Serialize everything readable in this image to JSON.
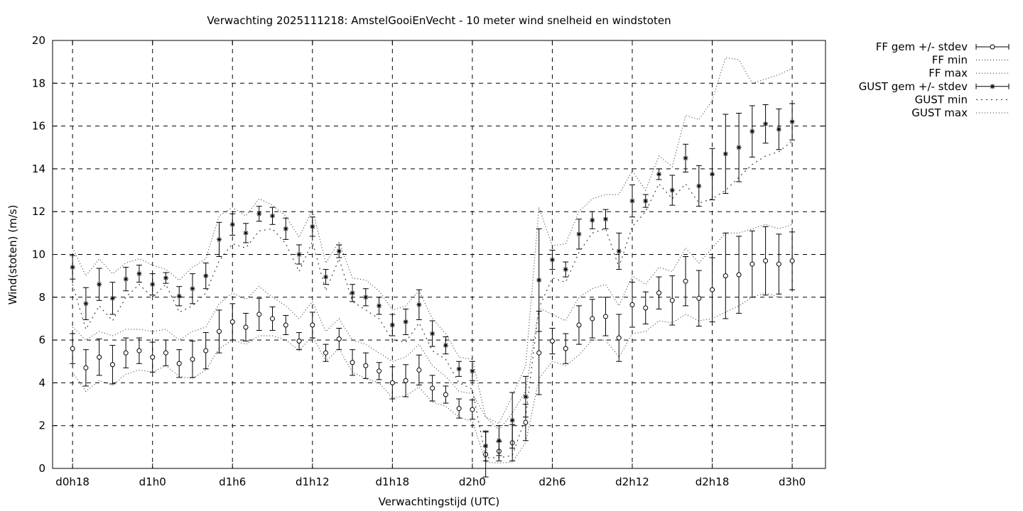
{
  "chart_data": {
    "type": "line",
    "title": "Verwachting 2025111218: AmstelGooiEnVecht - 10 meter wind snelheid en windstoten",
    "xlabel": "Verwachtingstijd (UTC)",
    "ylabel": "Wind(stoten) (m/s)",
    "ylim": [
      0,
      20
    ],
    "xlim": [
      -1.5,
      56.5
    ],
    "grid": true,
    "legend_position": "outside-right",
    "x_ticks": [
      {
        "x": 0,
        "label": "d0h18"
      },
      {
        "x": 6,
        "label": "d1h0"
      },
      {
        "x": 12,
        "label": "d1h6"
      },
      {
        "x": 18,
        "label": "d1h12"
      },
      {
        "x": 24,
        "label": "d1h18"
      },
      {
        "x": 30,
        "label": "d2h0"
      },
      {
        "x": 36,
        "label": "d2h6"
      },
      {
        "x": 42,
        "label": "d2h12"
      },
      {
        "x": 48,
        "label": "d2h18"
      },
      {
        "x": 54,
        "label": "d3h0"
      }
    ],
    "y_ticks": [
      0,
      2,
      4,
      6,
      8,
      10,
      12,
      14,
      16,
      18,
      20
    ],
    "x_hours": [
      0,
      1,
      2,
      3,
      4,
      5,
      6,
      7,
      8,
      9,
      10,
      11,
      12,
      13,
      14,
      15,
      16,
      17,
      18,
      19,
      20,
      21,
      22,
      23,
      24,
      25,
      26,
      27,
      28,
      29,
      30,
      31,
      32,
      33,
      34,
      35,
      36,
      37,
      38,
      39,
      40,
      41,
      42,
      43,
      44,
      45,
      46,
      47,
      48,
      49,
      50,
      51,
      52,
      53,
      54
    ],
    "series": [
      {
        "name": "FF gem +/- stdev",
        "style": "errorbars-circle",
        "mean": [
          5.6,
          4.7,
          5.2,
          4.85,
          5.4,
          5.5,
          5.2,
          5.4,
          4.9,
          5.1,
          5.5,
          6.4,
          6.85,
          6.6,
          7.2,
          7.0,
          6.7,
          5.95,
          6.7,
          5.4,
          6.05,
          4.95,
          4.8,
          4.55,
          4.0,
          4.1,
          4.6,
          3.75,
          3.45,
          2.8,
          2.75,
          0.65,
          0.8,
          1.2,
          2.15,
          5.4,
          5.95,
          5.6,
          6.7,
          7.0,
          7.1,
          6.1,
          7.65,
          7.5,
          8.2,
          7.85,
          8.75,
          7.95,
          8.35,
          9.0,
          9.05,
          9.55,
          9.7,
          9.55,
          9.7
        ],
        "stdev": [
          0.7,
          0.85,
          0.85,
          0.9,
          0.7,
          0.6,
          0.7,
          0.6,
          0.65,
          0.85,
          0.85,
          1.0,
          0.85,
          0.65,
          0.75,
          0.55,
          0.45,
          0.4,
          0.6,
          0.4,
          0.5,
          0.6,
          0.6,
          0.4,
          0.75,
          0.75,
          0.7,
          0.6,
          0.4,
          0.45,
          0.45,
          1.05,
          0.45,
          0.85,
          0.85,
          1.95,
          0.6,
          0.7,
          0.9,
          0.9,
          0.9,
          1.1,
          1.05,
          0.75,
          0.75,
          1.15,
          1.15,
          1.3,
          1.5,
          2.0,
          1.8,
          1.55,
          1.6,
          1.4,
          1.35
        ]
      },
      {
        "name": "FF min",
        "style": "dotted",
        "values": [
          4.5,
          3.6,
          4.1,
          3.9,
          4.4,
          4.6,
          4.5,
          4.8,
          4.3,
          4.2,
          4.6,
          5.6,
          6.0,
          5.8,
          6.2,
          6.2,
          6.0,
          5.5,
          6.2,
          5.0,
          5.6,
          4.5,
          4.2,
          4.0,
          3.3,
          3.4,
          3.8,
          3.1,
          2.9,
          2.4,
          2.2,
          0.3,
          0.25,
          0.3,
          1.2,
          4.2,
          5.0,
          4.8,
          5.3,
          6.0,
          6.0,
          5.2,
          6.3,
          6.4,
          6.9,
          6.8,
          7.2,
          6.9,
          7.0,
          7.3,
          7.6,
          8.0,
          8.2,
          8.0,
          8.0
        ]
      },
      {
        "name": "FF max",
        "style": "dotted",
        "values": [
          6.6,
          6.0,
          6.4,
          6.2,
          6.5,
          6.5,
          6.4,
          6.5,
          6.0,
          6.4,
          6.6,
          7.7,
          8.2,
          7.9,
          8.5,
          8.0,
          7.6,
          7.0,
          7.8,
          6.4,
          7.0,
          6.0,
          5.8,
          5.4,
          5.0,
          5.2,
          5.8,
          4.8,
          4.3,
          3.6,
          3.5,
          2.4,
          1.8,
          2.6,
          3.6,
          7.5,
          7.2,
          6.9,
          8.0,
          8.4,
          8.6,
          7.6,
          9.0,
          8.6,
          9.4,
          9.2,
          10.3,
          9.6,
          10.3,
          11.0,
          11.0,
          11.2,
          11.4,
          11.2,
          11.4
        ]
      },
      {
        "name": "GUST gem +/- stdev",
        "style": "errorbars-star",
        "mean": [
          9.4,
          7.7,
          8.6,
          7.95,
          8.85,
          9.1,
          8.6,
          8.9,
          8.05,
          8.4,
          9.0,
          10.7,
          11.4,
          11.0,
          11.9,
          11.8,
          11.2,
          10.0,
          11.3,
          8.95,
          10.15,
          8.2,
          8.0,
          7.6,
          6.7,
          6.85,
          7.65,
          6.3,
          5.75,
          4.65,
          4.55,
          1.05,
          1.3,
          2.25,
          3.35,
          8.8,
          9.75,
          9.3,
          10.95,
          11.6,
          11.65,
          10.15,
          12.5,
          12.5,
          13.75,
          13.0,
          14.5,
          13.2,
          13.75,
          14.7,
          15.0,
          15.75,
          16.1,
          15.85,
          16.2
        ],
        "stdev": [
          0.55,
          0.75,
          0.75,
          0.75,
          0.55,
          0.4,
          0.5,
          0.25,
          0.45,
          0.7,
          0.6,
          0.8,
          0.5,
          0.45,
          0.35,
          0.4,
          0.5,
          0.45,
          0.45,
          0.35,
          0.3,
          0.4,
          0.4,
          0.4,
          0.5,
          0.6,
          0.7,
          0.6,
          0.4,
          0.35,
          0.45,
          0.7,
          0.7,
          1.3,
          0.95,
          2.4,
          0.45,
          0.35,
          0.7,
          0.4,
          0.45,
          0.85,
          0.75,
          0.3,
          0.25,
          0.7,
          0.65,
          0.95,
          1.2,
          1.85,
          1.6,
          1.2,
          0.9,
          0.95,
          0.85
        ]
      },
      {
        "name": "GUST min",
        "style": "dotted-sparse",
        "values": [
          8.6,
          6.5,
          7.6,
          6.9,
          8.0,
          8.6,
          8.0,
          8.6,
          7.3,
          7.6,
          8.2,
          9.7,
          10.5,
          10.3,
          11.1,
          11.2,
          10.5,
          9.2,
          10.6,
          8.3,
          9.8,
          7.8,
          7.4,
          7.0,
          6.0,
          5.9,
          6.8,
          5.5,
          5.1,
          4.0,
          3.7,
          0.5,
          0.5,
          0.6,
          2.4,
          7.5,
          8.9,
          8.7,
          10.1,
          11.0,
          11.2,
          9.4,
          11.3,
          12.0,
          13.3,
          12.6,
          13.3,
          12.4,
          12.6,
          13.0,
          13.6,
          14.2,
          14.6,
          14.8,
          15.3
        ]
      },
      {
        "name": "GUST max",
        "style": "dotted",
        "values": [
          10.3,
          9.0,
          9.8,
          9.1,
          9.6,
          9.8,
          9.5,
          9.3,
          8.8,
          9.4,
          9.8,
          11.8,
          12.2,
          11.8,
          12.6,
          12.3,
          11.8,
          10.8,
          12.1,
          9.6,
          10.6,
          8.9,
          8.8,
          8.3,
          7.4,
          7.6,
          8.3,
          7.0,
          6.3,
          5.2,
          5.1,
          2.4,
          2.1,
          3.4,
          4.8,
          12.2,
          10.4,
          10.5,
          12.0,
          12.6,
          12.8,
          12.8,
          13.9,
          13.0,
          14.6,
          14.1,
          16.5,
          16.3,
          17.2,
          19.2,
          19.1,
          18.0,
          18.2,
          18.4,
          18.7
        ]
      }
    ]
  }
}
